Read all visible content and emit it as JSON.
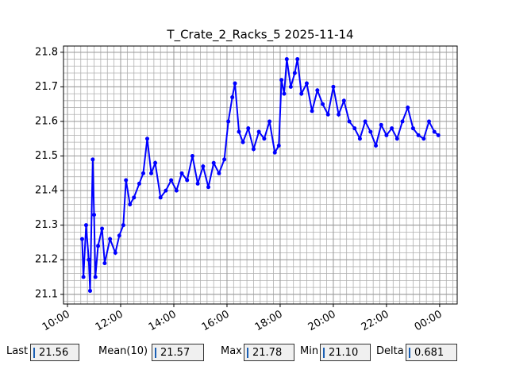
{
  "chart_data": {
    "type": "line",
    "title": "T_Crate_2_Racks_5 2025-11-14",
    "x": [
      10.55,
      10.6,
      10.7,
      10.8,
      10.85,
      10.95,
      11.0,
      11.05,
      11.15,
      11.3,
      11.4,
      11.6,
      11.8,
      11.95,
      12.1,
      12.2,
      12.35,
      12.5,
      12.7,
      12.85,
      13.0,
      13.15,
      13.3,
      13.5,
      13.7,
      13.9,
      14.1,
      14.3,
      14.5,
      14.7,
      14.9,
      15.1,
      15.3,
      15.5,
      15.7,
      15.9,
      16.05,
      16.2,
      16.3,
      16.45,
      16.6,
      16.8,
      17.0,
      17.2,
      17.4,
      17.6,
      17.8,
      17.95,
      18.05,
      18.15,
      18.25,
      18.4,
      18.55,
      18.65,
      18.8,
      19.0,
      19.2,
      19.4,
      19.6,
      19.8,
      20.0,
      20.2,
      20.4,
      20.6,
      20.8,
      21.0,
      21.2,
      21.4,
      21.6,
      21.8,
      22.0,
      22.2,
      22.4,
      22.6,
      22.8,
      23.0,
      23.2,
      23.4,
      23.6,
      23.8,
      23.95
    ],
    "series": [
      {
        "color": "#0000ff",
        "values": [
          21.26,
          21.15,
          21.3,
          21.2,
          21.11,
          21.49,
          21.33,
          21.15,
          21.24,
          21.29,
          21.19,
          21.26,
          21.22,
          21.27,
          21.3,
          21.43,
          21.36,
          21.38,
          21.42,
          21.45,
          21.55,
          21.45,
          21.48,
          21.38,
          21.4,
          21.43,
          21.4,
          21.45,
          21.43,
          21.5,
          21.42,
          21.47,
          21.41,
          21.48,
          21.45,
          21.49,
          21.6,
          21.67,
          21.71,
          21.57,
          21.54,
          21.58,
          21.52,
          21.57,
          21.55,
          21.6,
          21.51,
          21.53,
          21.72,
          21.68,
          21.78,
          21.7,
          21.74,
          21.78,
          21.68,
          21.71,
          21.63,
          21.69,
          21.65,
          21.62,
          21.7,
          21.62,
          21.66,
          21.6,
          21.58,
          21.55,
          21.6,
          21.57,
          21.53,
          21.59,
          21.56,
          21.58,
          21.55,
          21.6,
          21.64,
          21.58,
          21.56,
          21.55,
          21.6,
          21.57,
          21.56
        ]
      }
    ],
    "xlim": [
      9.85,
      24.66
    ],
    "ylim": [
      21.072,
      21.818
    ],
    "xticks": [
      {
        "value": 10,
        "label": "10:00"
      },
      {
        "value": 12,
        "label": "12:00"
      },
      {
        "value": 14,
        "label": "14:00"
      },
      {
        "value": 16,
        "label": "16:00"
      },
      {
        "value": 18,
        "label": "18:00"
      },
      {
        "value": 20,
        "label": "20:00"
      },
      {
        "value": 22,
        "label": "22:00"
      },
      {
        "value": 24,
        "label": "00:00"
      }
    ],
    "yticks": [
      21.1,
      21.2,
      21.3,
      21.4,
      21.5,
      21.6,
      21.7,
      21.8
    ],
    "grid": true,
    "minor_grid": {
      "x": 0.25,
      "y": 0.02
    }
  },
  "status": [
    {
      "label": "Last",
      "value": "21.56"
    },
    {
      "label": "Mean(10)",
      "value": "21.57"
    },
    {
      "label": "Max",
      "value": "21.78"
    },
    {
      "label": "Min",
      "value": "21.10"
    },
    {
      "label": "Delta",
      "value": "0.681"
    }
  ]
}
